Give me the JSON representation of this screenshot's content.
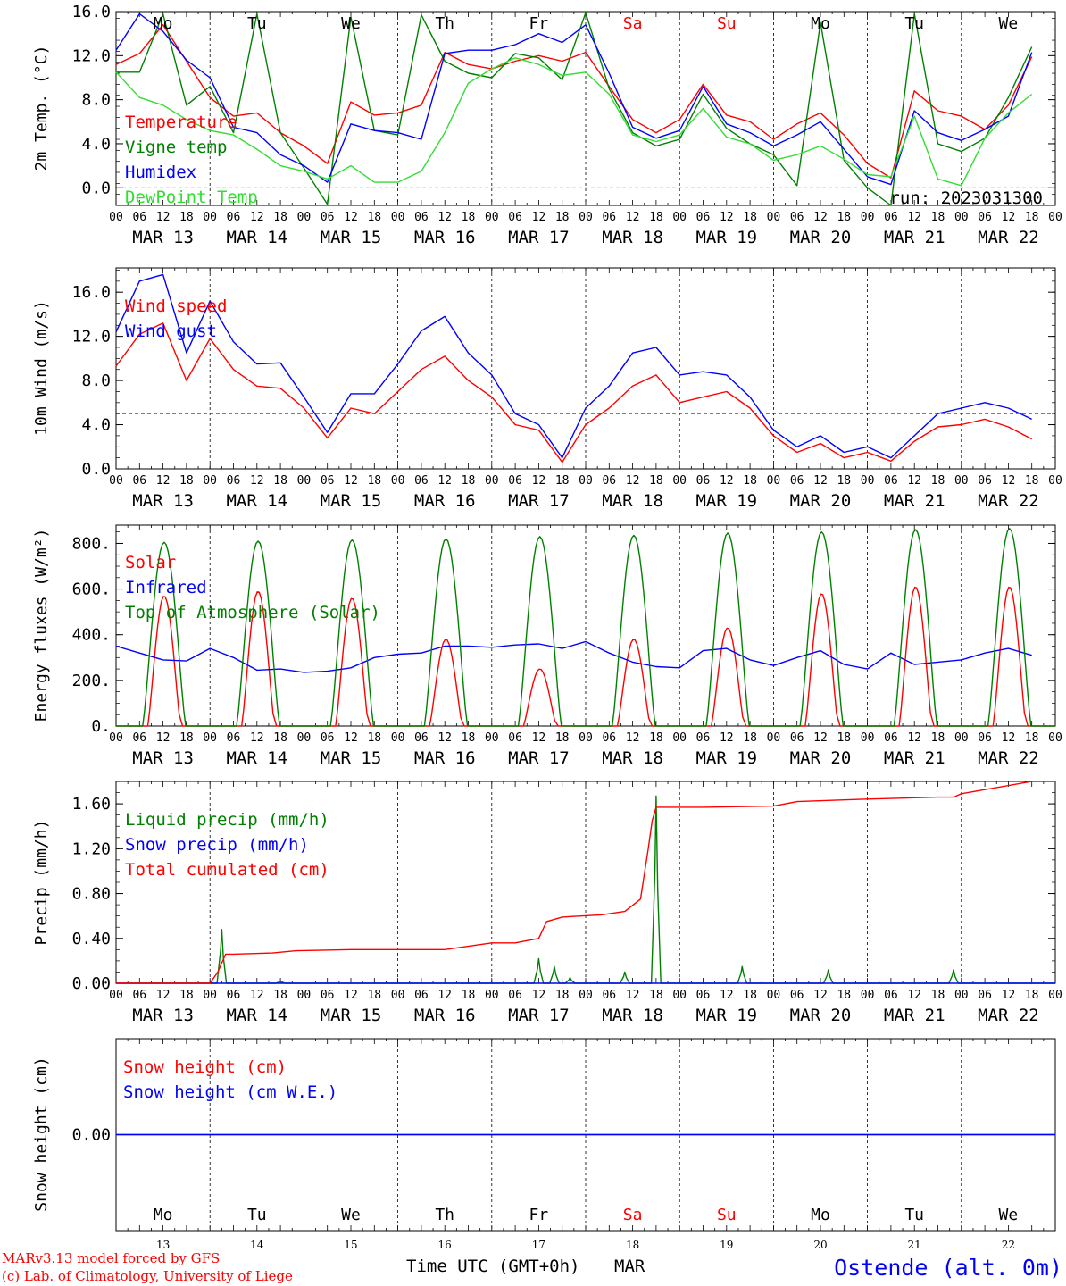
{
  "page": {
    "run_label": "run: 2023031300",
    "time_axis_title": "Time UTC (GMT+0h)",
    "month": "MAR",
    "credit_line1": "MARv3.13 model forced by GFS",
    "credit_line2": "(c) Lab. of Climatology, University of Liege",
    "station": "Ostende (alt. 0m)"
  },
  "days": [
    {
      "date": "MAR 13",
      "dow": "Mo",
      "num": "13",
      "weekend": false
    },
    {
      "date": "MAR 14",
      "dow": "Tu",
      "num": "14",
      "weekend": false
    },
    {
      "date": "MAR 15",
      "dow": "We",
      "num": "15",
      "weekend": false
    },
    {
      "date": "MAR 16",
      "dow": "Th",
      "num": "16",
      "weekend": false
    },
    {
      "date": "MAR 17",
      "dow": "Fr",
      "num": "17",
      "weekend": false
    },
    {
      "date": "MAR 18",
      "dow": "Sa",
      "num": "18",
      "weekend": true
    },
    {
      "date": "MAR 19",
      "dow": "Su",
      "num": "19",
      "weekend": true
    },
    {
      "date": "MAR 20",
      "dow": "Mo",
      "num": "20",
      "weekend": false
    },
    {
      "date": "MAR 21",
      "dow": "Tu",
      "num": "21",
      "weekend": false
    },
    {
      "date": "MAR 22",
      "dow": "We",
      "num": "22",
      "weekend": false
    }
  ],
  "hour_ticks": [
    "00",
    "06",
    "12",
    "18"
  ],
  "colors": {
    "red": "#ff0000",
    "dark_green": "#008000",
    "blue": "#0000ff",
    "light_green": "#33dd33",
    "purple": "#800080"
  },
  "chart_data": [
    {
      "id": "temp",
      "type": "line",
      "ylabel": "2m Temp. (°C)",
      "ylim": [
        -1.6,
        16.0
      ],
      "yticks": [
        0.0,
        4.0,
        8.0,
        12.0,
        16.0
      ],
      "ytick_labels": [
        "0.0",
        "4.0",
        "8.0",
        "12.0",
        "16.0"
      ],
      "ref_line": 0.0,
      "x_unit": "hours since MAR 13 00 UTC",
      "series": [
        {
          "name": "Temperature",
          "color": "red",
          "x": [
            0,
            6,
            12,
            18,
            24,
            30,
            36,
            42,
            48,
            54,
            60,
            66,
            72,
            78,
            84,
            90,
            96,
            102,
            108,
            114,
            120,
            126,
            132,
            138,
            144,
            150,
            156,
            162,
            168,
            174,
            180,
            186,
            192,
            198,
            204,
            210,
            216,
            222,
            228,
            234
          ],
          "y": [
            11.2,
            12.2,
            14.8,
            11.5,
            8.2,
            6.5,
            6.8,
            5.0,
            3.8,
            2.2,
            7.8,
            6.6,
            6.8,
            7.5,
            12.3,
            11.2,
            10.8,
            11.5,
            12.0,
            11.5,
            12.3,
            9.2,
            6.2,
            5.0,
            6.2,
            9.4,
            6.6,
            6.0,
            4.4,
            5.8,
            6.8,
            4.8,
            2.2,
            0.9,
            8.8,
            7.0,
            6.5,
            5.3,
            7.5,
            11.9
          ]
        },
        {
          "name": "Vigne temp",
          "color": "dark_green",
          "x": [
            0,
            6,
            12,
            18,
            24,
            30,
            36,
            42,
            48,
            54,
            60,
            66,
            72,
            78,
            84,
            90,
            96,
            102,
            108,
            114,
            120,
            126,
            132,
            138,
            144,
            150,
            156,
            162,
            168,
            174,
            180,
            186,
            192,
            198,
            204,
            210,
            216,
            222,
            228,
            234
          ],
          "y": [
            10.5,
            10.5,
            15.8,
            7.5,
            9.2,
            5.0,
            15.8,
            5.0,
            1.8,
            -1.5,
            15.5,
            5.2,
            4.8,
            15.7,
            11.5,
            10.4,
            10.0,
            12.2,
            11.8,
            9.8,
            15.9,
            9.0,
            5.0,
            3.8,
            4.4,
            8.5,
            5.4,
            4.0,
            3.0,
            0.2,
            15.0,
            2.5,
            0.0,
            -1.6,
            15.8,
            4.0,
            3.3,
            4.5,
            8.2,
            12.8
          ]
        },
        {
          "name": "Humidex",
          "color": "blue",
          "x": [
            0,
            6,
            12,
            18,
            24,
            30,
            36,
            42,
            48,
            54,
            60,
            66,
            72,
            78,
            84,
            90,
            96,
            102,
            108,
            114,
            120,
            126,
            132,
            138,
            144,
            150,
            156,
            162,
            168,
            174,
            180,
            186,
            192,
            198,
            204,
            210,
            216,
            222,
            228,
            234
          ],
          "y": [
            12.5,
            15.8,
            14.2,
            11.6,
            10.0,
            5.5,
            5.0,
            3.0,
            2.0,
            0.5,
            5.8,
            5.2,
            5.0,
            4.4,
            12.2,
            12.5,
            12.5,
            13.0,
            14.0,
            13.2,
            14.8,
            10.4,
            5.5,
            4.5,
            5.2,
            9.2,
            5.8,
            5.0,
            3.8,
            4.8,
            6.0,
            3.5,
            1.0,
            0.3,
            7.0,
            5.0,
            4.3,
            5.3,
            6.5,
            12.3
          ]
        },
        {
          "name": "DewPoint Temp",
          "color": "light_green",
          "x": [
            0,
            6,
            12,
            18,
            24,
            30,
            36,
            42,
            48,
            54,
            60,
            66,
            72,
            78,
            84,
            90,
            96,
            102,
            108,
            114,
            120,
            126,
            132,
            138,
            144,
            150,
            156,
            162,
            168,
            174,
            180,
            186,
            192,
            198,
            204,
            210,
            216,
            222,
            228,
            234
          ],
          "y": [
            10.5,
            8.2,
            7.5,
            6.2,
            5.2,
            4.8,
            3.5,
            2.0,
            1.5,
            0.8,
            2.0,
            0.5,
            0.5,
            1.5,
            5.0,
            9.5,
            10.8,
            11.8,
            11.2,
            10.2,
            10.5,
            8.5,
            4.8,
            4.2,
            4.8,
            7.2,
            4.6,
            4.0,
            2.5,
            3.0,
            3.8,
            2.6,
            1.2,
            1.0,
            6.5,
            0.8,
            0.2,
            4.5,
            6.8,
            8.5
          ]
        }
      ]
    },
    {
      "id": "wind",
      "type": "line",
      "ylabel": "10m Wind (m/s)",
      "ylim": [
        0.0,
        18.2
      ],
      "yticks": [
        0.0,
        4.0,
        8.0,
        12.0,
        16.0
      ],
      "ytick_labels": [
        "0.0",
        "4.0",
        "8.0",
        "12.0",
        "16.0"
      ],
      "ref_line": 5.0,
      "x_unit": "hours since MAR 13 00 UTC",
      "series": [
        {
          "name": "Wind speed",
          "color": "red",
          "x": [
            0,
            6,
            12,
            18,
            24,
            30,
            36,
            42,
            48,
            54,
            60,
            66,
            72,
            78,
            84,
            90,
            96,
            102,
            108,
            114,
            120,
            126,
            132,
            138,
            144,
            150,
            156,
            162,
            168,
            174,
            180,
            186,
            192,
            198,
            204,
            210,
            216,
            222,
            228,
            234
          ],
          "y": [
            9.3,
            12.2,
            13.2,
            8.0,
            11.8,
            9.0,
            7.5,
            7.3,
            5.5,
            2.8,
            5.5,
            5.0,
            7.0,
            9.0,
            10.2,
            8.0,
            6.5,
            4.0,
            3.5,
            0.6,
            4.0,
            5.5,
            7.5,
            8.5,
            6.0,
            6.5,
            7.0,
            5.5,
            3.0,
            1.5,
            2.3,
            1.0,
            1.5,
            0.7,
            2.5,
            3.8,
            4.0,
            4.5,
            3.8,
            2.7
          ]
        },
        {
          "name": "Wind gust",
          "color": "blue",
          "x": [
            0,
            6,
            12,
            18,
            24,
            30,
            36,
            42,
            48,
            54,
            60,
            66,
            72,
            78,
            84,
            90,
            96,
            102,
            108,
            114,
            120,
            126,
            132,
            138,
            144,
            150,
            156,
            162,
            168,
            174,
            180,
            186,
            192,
            198,
            204,
            210,
            216,
            222,
            228,
            234
          ],
          "y": [
            12.4,
            17.0,
            17.6,
            10.5,
            15.2,
            11.5,
            9.5,
            9.6,
            6.5,
            3.3,
            6.8,
            6.8,
            9.5,
            12.5,
            13.8,
            10.5,
            8.5,
            5.0,
            4.0,
            1.0,
            5.5,
            7.5,
            10.5,
            11.0,
            8.5,
            8.8,
            8.5,
            6.5,
            3.5,
            2.0,
            3.0,
            1.5,
            2.0,
            1.0,
            3.0,
            5.0,
            5.5,
            6.0,
            5.5,
            4.5
          ]
        }
      ]
    },
    {
      "id": "energy",
      "type": "line",
      "ylabel": "Energy fluxes (W/m²)",
      "ylim": [
        0,
        880
      ],
      "yticks": [
        0,
        200,
        400,
        600,
        800
      ],
      "ytick_labels": [
        "0.",
        "200.",
        "400.",
        "600.",
        "800."
      ],
      "x_unit": "hours since MAR 13 00 UTC",
      "series": [
        {
          "name": "Solar",
          "color": "red",
          "daily_peaks": [
            570,
            590,
            560,
            380,
            250,
            380,
            430,
            580,
            610,
            610
          ]
        },
        {
          "name": "Infrared",
          "color": "blue",
          "x": [
            0,
            6,
            12,
            18,
            24,
            30,
            36,
            42,
            48,
            54,
            60,
            66,
            72,
            78,
            84,
            90,
            96,
            102,
            108,
            114,
            120,
            126,
            132,
            138,
            144,
            150,
            156,
            162,
            168,
            174,
            180,
            186,
            192,
            198,
            204,
            210,
            216,
            222,
            228,
            234
          ],
          "y": [
            350,
            320,
            290,
            285,
            340,
            300,
            245,
            250,
            235,
            240,
            255,
            300,
            315,
            320,
            350,
            350,
            345,
            355,
            360,
            340,
            370,
            320,
            280,
            260,
            255,
            330,
            340,
            290,
            265,
            300,
            330,
            270,
            250,
            320,
            270,
            280,
            290,
            320,
            340,
            310
          ]
        },
        {
          "name": "Top of Atmosphere (Solar)",
          "color": "dark_green",
          "daily_peaks": [
            805,
            810,
            815,
            820,
            830,
            835,
            845,
            850,
            860,
            865
          ]
        }
      ]
    },
    {
      "id": "precip",
      "type": "line",
      "ylabel": "Precip (mm/h)",
      "ylim": [
        0.0,
        1.8
      ],
      "yticks": [
        0.0,
        0.4,
        0.8,
        1.2,
        1.6
      ],
      "ytick_labels": [
        "0.00",
        "0.40",
        "0.80",
        "1.20",
        "1.60"
      ],
      "x_unit": "hours since MAR 13 00 UTC",
      "series": [
        {
          "name": "Liquid precip (mm/h)",
          "color": "dark_green",
          "spikes": [
            [
              27,
              0.48
            ],
            [
              42,
              0.02
            ],
            [
              108,
              0.22
            ],
            [
              112,
              0.15
            ],
            [
              116,
              0.05
            ],
            [
              130,
              0.1
            ],
            [
              138,
              1.67
            ],
            [
              160,
              0.15
            ],
            [
              182,
              0.12
            ],
            [
              214,
              0.12
            ]
          ]
        },
        {
          "name": "Snow precip (mm/h)",
          "color": "blue",
          "x": [
            0,
            240
          ],
          "y": [
            0,
            0
          ]
        },
        {
          "name": "Total cumulated (cm)",
          "color": "red",
          "x": [
            0,
            24,
            26,
            28,
            30,
            40,
            46,
            60,
            72,
            84,
            90,
            96,
            102,
            108,
            110,
            114,
            124,
            130,
            134,
            136,
            137,
            138,
            140,
            150,
            168,
            174,
            190,
            210,
            214,
            216,
            234,
            240
          ],
          "y": [
            0.0,
            0.0,
            0.1,
            0.26,
            0.26,
            0.27,
            0.29,
            0.3,
            0.3,
            0.3,
            0.33,
            0.36,
            0.36,
            0.4,
            0.55,
            0.59,
            0.61,
            0.64,
            0.75,
            1.2,
            1.45,
            1.57,
            1.57,
            1.57,
            1.58,
            1.62,
            1.64,
            1.66,
            1.66,
            1.69,
            1.8,
            1.8
          ]
        }
      ]
    },
    {
      "id": "snow",
      "type": "line",
      "ylabel": "Snow height (cm)",
      "ylim": [
        -1.0,
        1.0
      ],
      "yticks": [
        0.0
      ],
      "ytick_labels": [
        "0.00"
      ],
      "x_unit": "hours since MAR 13 00 UTC",
      "series": [
        {
          "name": "Snow height (cm)",
          "color": "red",
          "x": [
            0,
            240
          ],
          "y": [
            0,
            0
          ]
        },
        {
          "name": "Snow height (cm W.E.)",
          "color": "blue",
          "x": [
            0,
            240
          ],
          "y": [
            0,
            0
          ]
        }
      ]
    }
  ]
}
